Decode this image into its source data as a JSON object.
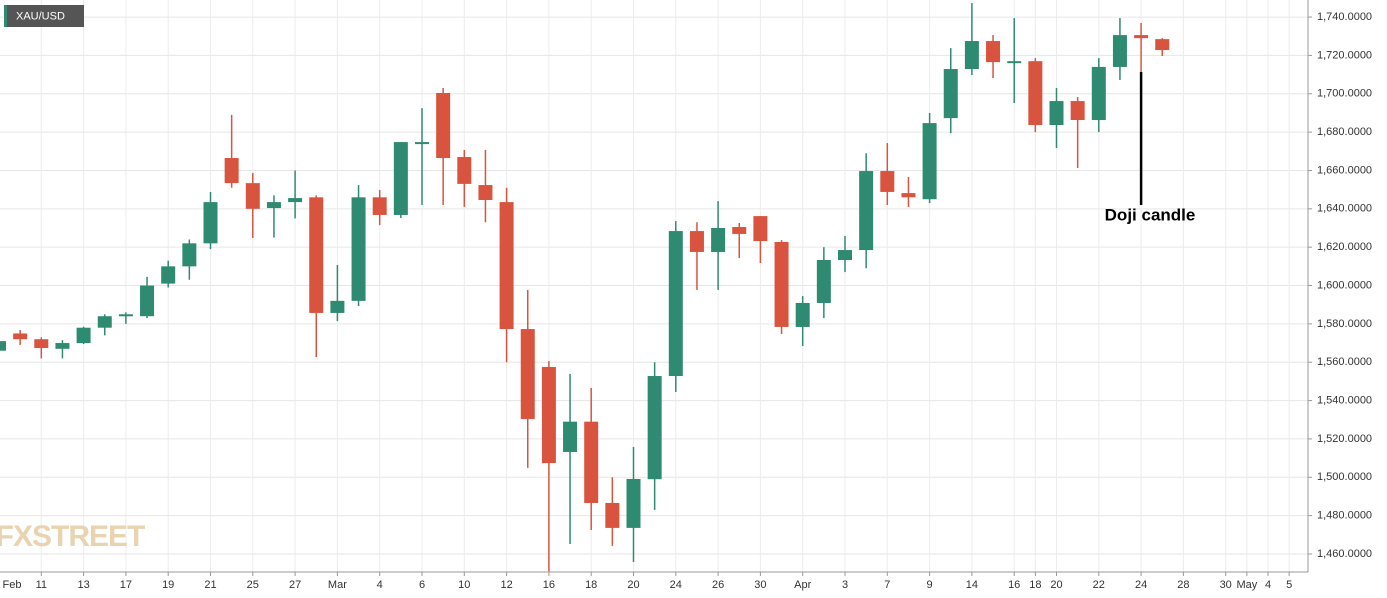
{
  "chart_data": {
    "type": "candlestick",
    "ticker": "XAU/USD",
    "watermark": "FXSTREET",
    "annotation": "Doji candle",
    "annotation_index": 54,
    "up_color": "#2f8a72",
    "down_color": "#d9543f",
    "grid": true,
    "categories": [
      "Feb",
      null,
      "11",
      null,
      "13",
      null,
      "17",
      null,
      "19",
      null,
      "21",
      null,
      "25",
      null,
      "27",
      null,
      "Mar",
      null,
      "4",
      null,
      "6",
      null,
      "10",
      null,
      "12",
      null,
      "16",
      null,
      "18",
      null,
      "20",
      null,
      "24",
      null,
      "26",
      null,
      "30",
      null,
      "Apr",
      null,
      "3",
      null,
      "7",
      null,
      "9",
      null,
      "14",
      null,
      "16",
      "18",
      "20",
      null,
      "22",
      null,
      "24",
      null,
      "28",
      null,
      "30",
      "May",
      "4",
      "5"
    ],
    "open": [
      1566,
      1575,
      1572,
      1567,
      1570,
      1578,
      1584,
      1584,
      1601,
      1610,
      1622,
      1666.5,
      1653.4,
      1640.4,
      1643.5,
      1646,
      1585.7,
      1592,
      1646,
      1636.8,
      1674,
      1700.4,
      1667,
      1652.4,
      1643.5,
      1577.3,
      1557.5,
      1513.2,
      1529,
      1486.6,
      1473.6,
      1499,
      1552.8,
      1628.4,
      1617.5,
      1630.5,
      1636.2,
      1622.7,
      1578.4,
      1590.9,
      1613.3,
      1618.5,
      1659.7,
      1648.2,
      1645,
      1687.3,
      1712.9,
      1727.5,
      1716.5,
      1717,
      1683.7,
      1696.2,
      1686.3,
      1714,
      1730.6,
      1728.5,
      null,
      null,
      null,
      null,
      null,
      null
    ],
    "high": [
      1572,
      1576.8,
      1573,
      1571.5,
      1578.5,
      1585,
      1586,
      1604.5,
      1613,
      1624,
      1648.8,
      1689,
      1658.7,
      1647,
      1660,
      1647,
      1610.7,
      1652.4,
      1649.8,
      1674.8,
      1692.5,
      1703,
      1670.7,
      1670.7,
      1651,
      1597.7,
      1560.6,
      1553.9,
      1546.6,
      1500,
      1515.8,
      1560,
      1633.6,
      1633,
      1644,
      1632.6,
      1636.2,
      1623.7,
      1594.5,
      1620,
      1625.8,
      1669,
      1674.3,
      1656.6,
      1690,
      1723.8,
      1747.3,
      1730.6,
      1739.5,
      1718.6,
      1703,
      1698.3,
      1718.6,
      1739.5,
      1736.9,
      1729,
      null,
      null,
      null,
      null,
      null,
      null
    ],
    "low": [
      1561,
      1569,
      1562,
      1562,
      1569.5,
      1574,
      1580,
      1583,
      1599,
      1603,
      1619,
      1651,
      1624.8,
      1625,
      1635,
      1562.7,
      1581.5,
      1589.3,
      1631.5,
      1635.2,
      1642,
      1642,
      1641,
      1633,
      1560,
      1504.9,
      1451,
      1465.2,
      1472.5,
      1464.2,
      1455.8,
      1483,
      1544.5,
      1597.7,
      1597.7,
      1614.3,
      1611.7,
      1574.7,
      1568.5,
      1583,
      1607,
      1609,
      1642,
      1641,
      1643,
      1679.5,
      1709.8,
      1708.2,
      1695.2,
      1680,
      1671.7,
      1661.3,
      1680,
      1707.2,
      1710.8,
      1719.7,
      null,
      null,
      null,
      null,
      null,
      null
    ],
    "close": [
      1571,
      1572,
      1567.4,
      1570,
      1578,
      1584,
      1585,
      1600,
      1610,
      1622,
      1643.5,
      1653.4,
      1640,
      1643.5,
      1645.6,
      1585.7,
      1592,
      1646,
      1636.8,
      1674.8,
      1674.8,
      1666.5,
      1653,
      1644.6,
      1577.3,
      1530.4,
      1507.4,
      1529,
      1486.6,
      1473.6,
      1499.1,
      1552.8,
      1628.4,
      1617.5,
      1630,
      1626.9,
      1623.2,
      1578.4,
      1590.9,
      1613.3,
      1618.5,
      1659.7,
      1648.8,
      1646,
      1684.7,
      1712.9,
      1727.5,
      1716.5,
      1717,
      1683.7,
      1696.2,
      1686.3,
      1714,
      1730.6,
      1729,
      1722.8,
      null,
      null,
      null,
      null,
      null,
      null
    ],
    "ylim": [
      1450.6,
      1748.9
    ],
    "yticks": [
      {
        "value": 1460,
        "label": "1,460.0000"
      },
      {
        "value": 1480,
        "label": "1,480.0000"
      },
      {
        "value": 1500,
        "label": "1,500.0000"
      },
      {
        "value": 1520,
        "label": "1,520.0000"
      },
      {
        "value": 1540,
        "label": "1,540.0000"
      },
      {
        "value": 1560,
        "label": "1,560.0000"
      },
      {
        "value": 1580,
        "label": "1,580.0000"
      },
      {
        "value": 1600,
        "label": "1,600.0000"
      },
      {
        "value": 1620,
        "label": "1,620.0000"
      },
      {
        "value": 1640,
        "label": "1,640.0000"
      },
      {
        "value": 1660,
        "label": "1,660.0000"
      },
      {
        "value": 1680,
        "label": "1,680.0000"
      },
      {
        "value": 1700,
        "label": "1,700.0000"
      },
      {
        "value": 1720,
        "label": "1,720.0000"
      },
      {
        "value": 1740,
        "label": "1,740.0000"
      }
    ]
  }
}
